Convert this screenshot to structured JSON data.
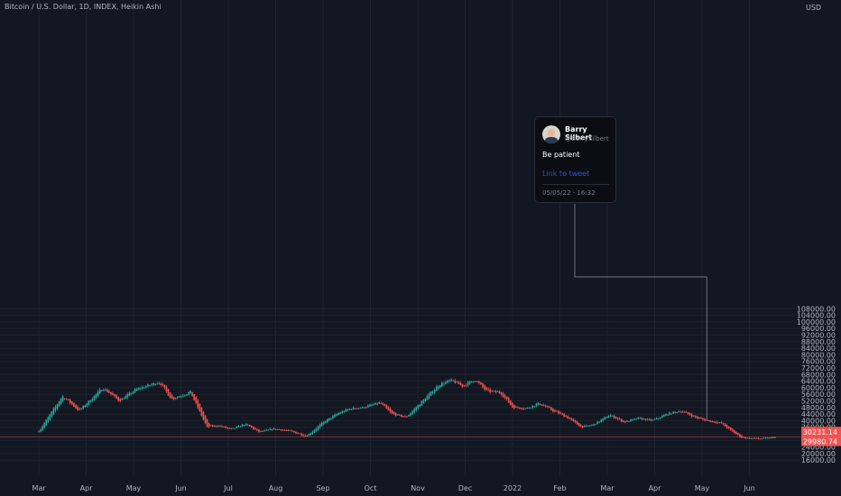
{
  "header": {
    "title": "Bitcoin / U.S. Dollar, 1D, INDEX, Heikin Ashi",
    "axis_unit": "USD"
  },
  "colors": {
    "background": "#131722",
    "up": "#26a69a",
    "down": "#ef5350",
    "grid": "#1e222d",
    "text": "#b2b5be",
    "connector": "#b2b5be"
  },
  "tweet": {
    "name": "Barry Silbert",
    "handle": "@BarrySilbert",
    "message": "Be patient",
    "link_text": "Link to tweet",
    "date": "05/05/22 - 16:32"
  },
  "chart_data": {
    "type": "candlestick",
    "style": "Heikin Ashi",
    "x_ticks": [
      "Mar",
      "Apr",
      "May",
      "Jun",
      "Jul",
      "Aug",
      "Sep",
      "Oct",
      "Nov",
      "Dec",
      "2022",
      "Feb",
      "Mar",
      "Apr",
      "May",
      "Jun"
    ],
    "y_ticks": [
      16000,
      20000,
      24000,
      28000,
      32000,
      36000,
      40000,
      44000,
      48000,
      52000,
      56000,
      60000,
      64000,
      68000,
      72000,
      76000,
      80000,
      84000,
      88000,
      92000,
      96000,
      100000,
      104000,
      108000
    ],
    "ylim": [
      14000,
      108500
    ],
    "price_labels": [
      {
        "text": "30231.14",
        "value": 30231.14
      },
      {
        "text": "29980.74",
        "value": 29980.74
      }
    ],
    "anchor_points": [
      {
        "month": 0.0,
        "price": 33500
      },
      {
        "month": 0.5,
        "price": 55000
      },
      {
        "month": 0.85,
        "price": 46000
      },
      {
        "month": 1.35,
        "price": 60000
      },
      {
        "month": 1.7,
        "price": 52000
      },
      {
        "month": 2.05,
        "price": 59000
      },
      {
        "month": 2.55,
        "price": 63500
      },
      {
        "month": 2.8,
        "price": 53000
      },
      {
        "month": 3.2,
        "price": 57500
      },
      {
        "month": 3.55,
        "price": 36000
      },
      {
        "month": 3.8,
        "price": 37000
      },
      {
        "month": 4.05,
        "price": 34500
      },
      {
        "month": 4.35,
        "price": 38000
      },
      {
        "month": 4.65,
        "price": 33000
      },
      {
        "month": 4.95,
        "price": 35000
      },
      {
        "month": 5.25,
        "price": 34000
      },
      {
        "month": 5.65,
        "price": 30500
      },
      {
        "month": 6.0,
        "price": 39000
      },
      {
        "month": 6.35,
        "price": 45000
      },
      {
        "month": 6.6,
        "price": 47500
      },
      {
        "month": 6.85,
        "price": 48000
      },
      {
        "month": 7.2,
        "price": 51000
      },
      {
        "month": 7.45,
        "price": 44000
      },
      {
        "month": 7.75,
        "price": 42000
      },
      {
        "month": 8.1,
        "price": 52000
      },
      {
        "month": 8.45,
        "price": 62000
      },
      {
        "month": 8.7,
        "price": 64500
      },
      {
        "month": 8.95,
        "price": 61000
      },
      {
        "month": 9.2,
        "price": 65000
      },
      {
        "month": 9.45,
        "price": 58000
      },
      {
        "month": 9.75,
        "price": 57000
      },
      {
        "month": 10.0,
        "price": 48000
      },
      {
        "month": 10.3,
        "price": 47500
      },
      {
        "month": 10.55,
        "price": 50500
      },
      {
        "month": 10.85,
        "price": 46000
      },
      {
        "month": 11.15,
        "price": 42000
      },
      {
        "month": 11.45,
        "price": 36000
      },
      {
        "month": 11.7,
        "price": 37500
      },
      {
        "month": 12.05,
        "price": 43500
      },
      {
        "month": 12.35,
        "price": 39000
      },
      {
        "month": 12.65,
        "price": 41500
      },
      {
        "month": 12.95,
        "price": 40000
      },
      {
        "month": 13.25,
        "price": 44000
      },
      {
        "month": 13.55,
        "price": 46000
      },
      {
        "month": 13.85,
        "price": 42000
      },
      {
        "month": 14.1,
        "price": 40000
      },
      {
        "month": 14.4,
        "price": 38500
      },
      {
        "month": 14.65,
        "price": 33000
      },
      {
        "month": 14.85,
        "price": 29500
      },
      {
        "month": 15.2,
        "price": 29000
      },
      {
        "month": 15.45,
        "price": 29500
      },
      {
        "month": 15.55,
        "price": 30200
      }
    ]
  }
}
